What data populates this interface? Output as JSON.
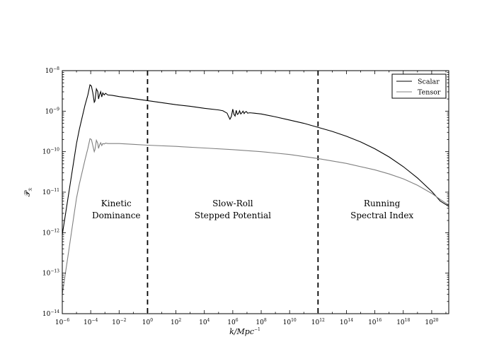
{
  "chart_data": {
    "type": "line",
    "title": "",
    "xlabel": "k/Mpc",
    "xlabel_exp": "−1",
    "ylabel": "𝒫",
    "ylabel_sub": "ℛ",
    "xscale": "log",
    "yscale": "log",
    "xlim_log10": [
      -6,
      21.2
    ],
    "ylim_log10": [
      -14,
      -8
    ],
    "grid": false,
    "legend_position": "top-right",
    "x_ticks": [
      {
        "base": "10",
        "exp": "−6",
        "log10": -6
      },
      {
        "base": "10",
        "exp": "−4",
        "log10": -4
      },
      {
        "base": "10",
        "exp": "−2",
        "log10": -2
      },
      {
        "base": "10",
        "exp": "0",
        "log10": 0
      },
      {
        "base": "10",
        "exp": "2",
        "log10": 2
      },
      {
        "base": "10",
        "exp": "4",
        "log10": 4
      },
      {
        "base": "10",
        "exp": "6",
        "log10": 6
      },
      {
        "base": "10",
        "exp": "8",
        "log10": 8
      },
      {
        "base": "10",
        "exp": "10",
        "log10": 10
      },
      {
        "base": "10",
        "exp": "12",
        "log10": 12
      },
      {
        "base": "10",
        "exp": "14",
        "log10": 14
      },
      {
        "base": "10",
        "exp": "16",
        "log10": 16
      },
      {
        "base": "10",
        "exp": "18",
        "log10": 18
      },
      {
        "base": "10",
        "exp": "20",
        "log10": 20
      }
    ],
    "y_ticks": [
      {
        "base": "10",
        "exp": "−14",
        "log10": -14
      },
      {
        "base": "10",
        "exp": "−13",
        "log10": -13
      },
      {
        "base": "10",
        "exp": "−12",
        "log10": -12
      },
      {
        "base": "10",
        "exp": "−11",
        "log10": -11
      },
      {
        "base": "10",
        "exp": "−10",
        "log10": -10
      },
      {
        "base": "10",
        "exp": "−9",
        "log10": -9
      },
      {
        "base": "10",
        "exp": "−8",
        "log10": -8
      }
    ],
    "vertical_lines_log10": [
      0,
      12
    ],
    "region_labels": [
      {
        "lines": [
          "Kinetic",
          "Dominance"
        ],
        "x_log10": -2.2,
        "y_log10": -11.35
      },
      {
        "lines": [
          "Slow-Roll",
          "Stepped Potential"
        ],
        "x_log10": 6.0,
        "y_log10": -11.35
      },
      {
        "lines": [
          "Running",
          "Spectral Index"
        ],
        "x_log10": 16.5,
        "y_log10": -11.35
      }
    ],
    "series": [
      {
        "name": "Scalar",
        "color": "#000000",
        "points_log10": [
          [
            -6.0,
            -12.05
          ],
          [
            -5.8,
            -11.6
          ],
          [
            -5.6,
            -11.15
          ],
          [
            -5.4,
            -10.7
          ],
          [
            -5.2,
            -10.25
          ],
          [
            -5.0,
            -9.8
          ],
          [
            -4.8,
            -9.45
          ],
          [
            -4.6,
            -9.15
          ],
          [
            -4.4,
            -8.85
          ],
          [
            -4.2,
            -8.6
          ],
          [
            -4.05,
            -8.35
          ],
          [
            -3.95,
            -8.38
          ],
          [
            -3.85,
            -8.55
          ],
          [
            -3.75,
            -8.78
          ],
          [
            -3.7,
            -8.75
          ],
          [
            -3.6,
            -8.45
          ],
          [
            -3.5,
            -8.52
          ],
          [
            -3.45,
            -8.7
          ],
          [
            -3.38,
            -8.6
          ],
          [
            -3.3,
            -8.52
          ],
          [
            -3.22,
            -8.65
          ],
          [
            -3.15,
            -8.55
          ],
          [
            -3.05,
            -8.6
          ],
          [
            -2.95,
            -8.56
          ],
          [
            -2.8,
            -8.6
          ],
          [
            -2.5,
            -8.61
          ],
          [
            -2.0,
            -8.64
          ],
          [
            -1.0,
            -8.69
          ],
          [
            0.0,
            -8.74
          ],
          [
            1.0,
            -8.79
          ],
          [
            2.0,
            -8.84
          ],
          [
            3.0,
            -8.88
          ],
          [
            4.0,
            -8.93
          ],
          [
            5.0,
            -8.97
          ],
          [
            5.3,
            -8.99
          ],
          [
            5.6,
            -9.05
          ],
          [
            5.7,
            -9.13
          ],
          [
            5.8,
            -9.2
          ],
          [
            5.9,
            -9.13
          ],
          [
            6.0,
            -8.95
          ],
          [
            6.08,
            -9.08
          ],
          [
            6.16,
            -9.12
          ],
          [
            6.24,
            -8.98
          ],
          [
            6.32,
            -9.08
          ],
          [
            6.4,
            -9.06
          ],
          [
            6.48,
            -8.99
          ],
          [
            6.56,
            -9.07
          ],
          [
            6.64,
            -9.04
          ],
          [
            6.72,
            -9.0
          ],
          [
            6.8,
            -9.06
          ],
          [
            6.88,
            -9.02
          ],
          [
            6.96,
            -9.01
          ],
          [
            7.04,
            -9.05
          ],
          [
            7.2,
            -9.04
          ],
          [
            7.5,
            -9.05
          ],
          [
            8.0,
            -9.07
          ],
          [
            9.0,
            -9.14
          ],
          [
            10.0,
            -9.22
          ],
          [
            11.0,
            -9.3
          ],
          [
            12.0,
            -9.4
          ],
          [
            13.0,
            -9.5
          ],
          [
            14.0,
            -9.62
          ],
          [
            15.0,
            -9.76
          ],
          [
            16.0,
            -9.93
          ],
          [
            17.0,
            -10.13
          ],
          [
            18.0,
            -10.37
          ],
          [
            19.0,
            -10.65
          ],
          [
            20.0,
            -10.98
          ],
          [
            20.6,
            -11.22
          ],
          [
            21.2,
            -11.35
          ]
        ]
      },
      {
        "name": "Tensor",
        "color": "#808080",
        "points_log10": [
          [
            -6.0,
            -13.52
          ],
          [
            -5.8,
            -13.05
          ],
          [
            -5.6,
            -12.58
          ],
          [
            -5.4,
            -12.1
          ],
          [
            -5.2,
            -11.62
          ],
          [
            -5.0,
            -11.15
          ],
          [
            -4.8,
            -10.8
          ],
          [
            -4.6,
            -10.5
          ],
          [
            -4.4,
            -10.2
          ],
          [
            -4.2,
            -9.92
          ],
          [
            -4.05,
            -9.68
          ],
          [
            -3.95,
            -9.7
          ],
          [
            -3.85,
            -9.85
          ],
          [
            -3.75,
            -10.0
          ],
          [
            -3.7,
            -9.95
          ],
          [
            -3.6,
            -9.72
          ],
          [
            -3.5,
            -9.8
          ],
          [
            -3.45,
            -9.92
          ],
          [
            -3.38,
            -9.84
          ],
          [
            -3.3,
            -9.78
          ],
          [
            -3.22,
            -9.85
          ],
          [
            -3.15,
            -9.8
          ],
          [
            -3.05,
            -9.81
          ],
          [
            -2.95,
            -9.79
          ],
          [
            -2.8,
            -9.8
          ],
          [
            -2.0,
            -9.8
          ],
          [
            -1.0,
            -9.82
          ],
          [
            0.0,
            -9.84
          ],
          [
            2.0,
            -9.87
          ],
          [
            4.0,
            -9.91
          ],
          [
            6.0,
            -9.95
          ],
          [
            8.0,
            -10.0
          ],
          [
            10.0,
            -10.07
          ],
          [
            12.0,
            -10.17
          ],
          [
            14.0,
            -10.29
          ],
          [
            16.0,
            -10.45
          ],
          [
            17.0,
            -10.55
          ],
          [
            18.0,
            -10.67
          ],
          [
            19.0,
            -10.83
          ],
          [
            20.0,
            -11.03
          ],
          [
            20.6,
            -11.18
          ],
          [
            21.2,
            -11.32
          ]
        ]
      }
    ]
  }
}
